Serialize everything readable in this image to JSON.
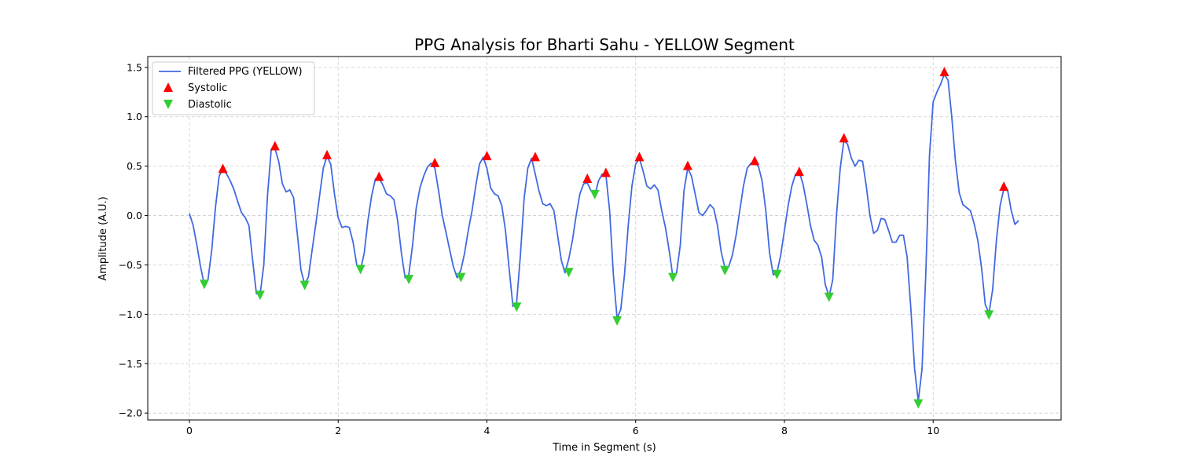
{
  "chart_data": {
    "type": "line",
    "title": "PPG Analysis for Bharti Sahu - YELLOW Segment",
    "xlabel": "Time in Segment (s)",
    "ylabel": "Amplitude (A.U.)",
    "xlim": [
      -0.56,
      11.72
    ],
    "ylim": [
      -2.07,
      1.61
    ],
    "x_ticks": [
      0,
      2,
      4,
      6,
      8,
      10
    ],
    "y_ticks": [
      -2.0,
      -1.5,
      -1.0,
      -0.5,
      0.0,
      0.5,
      1.0,
      1.5
    ],
    "x_tick_labels": [
      "0",
      "2",
      "4",
      "6",
      "8",
      "10"
    ],
    "y_tick_labels": [
      "−2.0",
      "−1.5",
      "−1.0",
      "−0.5",
      "0.0",
      "0.5",
      "1.0",
      "1.5"
    ],
    "grid": true,
    "legend_position": "top-left",
    "colors": {
      "line": "#4169e1",
      "systolic": "#ff0000",
      "diastolic": "#32cd32"
    },
    "series": [
      {
        "name": "Filtered PPG (YELLOW)",
        "type": "line",
        "x": [
          0.0,
          0.05,
          0.1,
          0.15,
          0.2,
          0.25,
          0.3,
          0.35,
          0.4,
          0.45,
          0.5,
          0.55,
          0.6,
          0.65,
          0.7,
          0.75,
          0.8,
          0.85,
          0.9,
          0.95,
          1.0,
          1.05,
          1.1,
          1.15,
          1.2,
          1.25,
          1.3,
          1.35,
          1.4,
          1.45,
          1.5,
          1.55,
          1.6,
          1.65,
          1.7,
          1.75,
          1.8,
          1.85,
          1.9,
          1.95,
          2.0,
          2.05,
          2.1,
          2.15,
          2.2,
          2.25,
          2.3,
          2.35,
          2.4,
          2.45,
          2.5,
          2.55,
          2.6,
          2.65,
          2.7,
          2.75,
          2.8,
          2.85,
          2.9,
          2.95,
          3.0,
          3.05,
          3.1,
          3.15,
          3.2,
          3.25,
          3.3,
          3.35,
          3.4,
          3.45,
          3.5,
          3.55,
          3.6,
          3.65,
          3.7,
          3.75,
          3.8,
          3.85,
          3.9,
          3.95,
          4.0,
          4.05,
          4.1,
          4.15,
          4.2,
          4.25,
          4.3,
          4.35,
          4.4,
          4.45,
          4.5,
          4.55,
          4.6,
          4.65,
          4.7,
          4.75,
          4.8,
          4.85,
          4.9,
          4.95,
          5.0,
          5.05,
          5.1,
          5.15,
          5.2,
          5.25,
          5.3,
          5.35,
          5.4,
          5.45,
          5.5,
          5.55,
          5.6,
          5.65,
          5.7,
          5.75,
          5.8,
          5.85,
          5.9,
          5.95,
          6.0,
          6.05,
          6.1,
          6.15,
          6.2,
          6.25,
          6.3,
          6.35,
          6.4,
          6.45,
          6.5,
          6.55,
          6.6,
          6.65,
          6.7,
          6.75,
          6.8,
          6.85,
          6.9,
          6.95,
          7.0,
          7.05,
          7.1,
          7.15,
          7.2,
          7.25,
          7.3,
          7.35,
          7.4,
          7.45,
          7.5,
          7.55,
          7.6,
          7.65,
          7.7,
          7.75,
          7.8,
          7.85,
          7.9,
          7.95,
          8.0,
          8.05,
          8.1,
          8.15,
          8.2,
          8.25,
          8.3,
          8.35,
          8.4,
          8.45,
          8.5,
          8.55,
          8.6,
          8.65,
          8.7,
          8.75,
          8.8,
          8.85,
          8.9,
          8.95,
          9.0,
          9.05,
          9.1,
          9.15,
          9.2,
          9.25,
          9.3,
          9.35,
          9.4,
          9.45,
          9.5,
          9.55,
          9.6,
          9.65,
          9.7,
          9.75,
          9.8,
          9.85,
          9.9,
          9.95,
          10.0,
          10.05,
          10.1,
          10.15,
          10.2,
          10.25,
          10.3,
          10.35,
          10.4,
          10.45,
          10.5,
          10.55,
          10.6,
          10.65,
          10.7,
          10.75,
          10.8,
          10.85,
          10.9,
          10.95,
          11.0,
          11.05,
          11.1,
          11.15
        ],
        "y": [
          0.02,
          -0.1,
          -0.3,
          -0.52,
          -0.7,
          -0.65,
          -0.35,
          0.08,
          0.4,
          0.47,
          0.42,
          0.35,
          0.26,
          0.14,
          0.03,
          -0.02,
          -0.1,
          -0.45,
          -0.79,
          -0.8,
          -0.5,
          0.2,
          0.67,
          0.68,
          0.55,
          0.32,
          0.24,
          0.26,
          0.18,
          -0.18,
          -0.55,
          -0.7,
          -0.62,
          -0.35,
          -0.08,
          0.2,
          0.48,
          0.6,
          0.52,
          0.22,
          -0.02,
          -0.12,
          -0.11,
          -0.12,
          -0.27,
          -0.5,
          -0.55,
          -0.38,
          -0.05,
          0.2,
          0.37,
          0.38,
          0.31,
          0.22,
          0.2,
          0.16,
          -0.05,
          -0.38,
          -0.63,
          -0.6,
          -0.3,
          0.08,
          0.28,
          0.4,
          0.49,
          0.53,
          0.48,
          0.25,
          0.0,
          -0.17,
          -0.35,
          -0.52,
          -0.63,
          -0.55,
          -0.38,
          -0.15,
          0.05,
          0.3,
          0.52,
          0.59,
          0.48,
          0.28,
          0.22,
          0.2,
          0.1,
          -0.15,
          -0.55,
          -0.92,
          -0.88,
          -0.4,
          0.17,
          0.48,
          0.58,
          0.42,
          0.25,
          0.12,
          0.1,
          0.12,
          0.05,
          -0.2,
          -0.45,
          -0.58,
          -0.44,
          -0.25,
          0.0,
          0.22,
          0.32,
          0.33,
          0.25,
          0.2,
          0.35,
          0.42,
          0.41,
          0.05,
          -0.6,
          -1.04,
          -0.95,
          -0.6,
          -0.1,
          0.3,
          0.52,
          0.58,
          0.45,
          0.3,
          0.27,
          0.31,
          0.26,
          0.05,
          -0.12,
          -0.35,
          -0.62,
          -0.58,
          -0.3,
          0.25,
          0.48,
          0.4,
          0.22,
          0.03,
          0.0,
          0.05,
          0.11,
          0.07,
          -0.1,
          -0.37,
          -0.53,
          -0.52,
          -0.4,
          -0.2,
          0.05,
          0.3,
          0.48,
          0.53,
          0.53,
          0.5,
          0.35,
          0.05,
          -0.38,
          -0.6,
          -0.58,
          -0.4,
          -0.15,
          0.1,
          0.3,
          0.42,
          0.44,
          0.32,
          0.12,
          -0.1,
          -0.25,
          -0.3,
          -0.42,
          -0.7,
          -0.82,
          -0.65,
          0.0,
          0.48,
          0.76,
          0.72,
          0.58,
          0.5,
          0.56,
          0.55,
          0.3,
          0.0,
          -0.18,
          -0.15,
          -0.03,
          -0.04,
          -0.15,
          -0.27,
          -0.27,
          -0.2,
          -0.2,
          -0.42,
          -0.95,
          -1.55,
          -1.88,
          -1.55,
          -0.6,
          0.6,
          1.15,
          1.25,
          1.33,
          1.43,
          1.37,
          1.0,
          0.55,
          0.23,
          0.11,
          0.08,
          0.05,
          -0.08,
          -0.25,
          -0.53,
          -0.9,
          -0.99,
          -0.75,
          -0.25,
          0.1,
          0.27,
          0.26,
          0.05,
          -0.09,
          -0.05
        ]
      },
      {
        "name": "Systolic",
        "type": "scatter",
        "x": [
          0.45,
          1.15,
          1.85,
          2.55,
          3.3,
          4.0,
          4.65,
          5.35,
          5.6,
          6.05,
          6.7,
          7.6,
          8.2,
          8.8,
          10.15,
          10.95
        ],
        "y": [
          0.47,
          0.7,
          0.61,
          0.39,
          0.53,
          0.6,
          0.59,
          0.37,
          0.43,
          0.59,
          0.5,
          0.55,
          0.44,
          0.78,
          1.45,
          0.29
        ]
      },
      {
        "name": "Diastolic",
        "type": "scatter",
        "x": [
          0.2,
          0.95,
          1.55,
          2.3,
          2.95,
          3.65,
          4.4,
          5.1,
          5.45,
          5.75,
          6.5,
          7.2,
          7.9,
          8.6,
          9.8,
          10.75
        ],
        "y": [
          -0.69,
          -0.8,
          -0.7,
          -0.54,
          -0.64,
          -0.62,
          -0.92,
          -0.57,
          0.22,
          -1.06,
          -0.62,
          -0.55,
          -0.59,
          -0.82,
          -1.9,
          -1.0
        ]
      }
    ]
  }
}
